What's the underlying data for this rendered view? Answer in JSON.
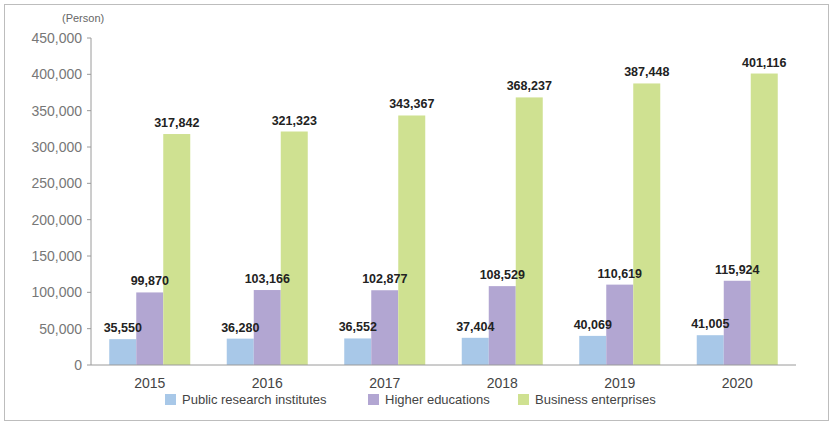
{
  "chart_data": {
    "type": "bar",
    "ylabel": "(Person)",
    "categories": [
      "2015",
      "2016",
      "2017",
      "2018",
      "2019",
      "2020"
    ],
    "series": [
      {
        "name": "Public research institutes",
        "color": "#a8c8e8",
        "values": [
          35550,
          36280,
          36552,
          37404,
          40069,
          41005
        ],
        "value_labels": [
          "35,550",
          "36,280",
          "36,552",
          "37,404",
          "40,069",
          "41,005"
        ]
      },
      {
        "name": "Higher educations",
        "color": "#b2a6d2",
        "values": [
          99870,
          103166,
          102877,
          108529,
          110619,
          115924
        ],
        "value_labels": [
          "99,870",
          "103,166",
          "102,877",
          "108,529",
          "110,619",
          "115,924"
        ]
      },
      {
        "name": "Business enterprises",
        "color": "#cfe191",
        "values": [
          317842,
          321323,
          343367,
          368237,
          387448,
          401116
        ],
        "value_labels": [
          "317,842",
          "321,323",
          "343,367",
          "368,237",
          "387,448",
          "401,116"
        ]
      }
    ],
    "ylim": [
      0,
      450000
    ],
    "yticks": [
      0,
      {
        "value": 50000,
        "label": "50,000"
      },
      {
        "value": 100000,
        "label": "100,000"
      },
      {
        "value": 150000,
        "label": "150,000"
      },
      {
        "value": 200000,
        "label": "200,000"
      },
      {
        "value": 250000,
        "label": "250,000"
      },
      {
        "value": 300000,
        "label": "300,000"
      },
      {
        "value": 350000,
        "label": "350,000"
      },
      {
        "value": 400000,
        "label": "400,000"
      },
      {
        "value": 450000,
        "label": "450,000"
      }
    ],
    "grid": false,
    "legend": "bottom",
    "data_labels": true
  }
}
